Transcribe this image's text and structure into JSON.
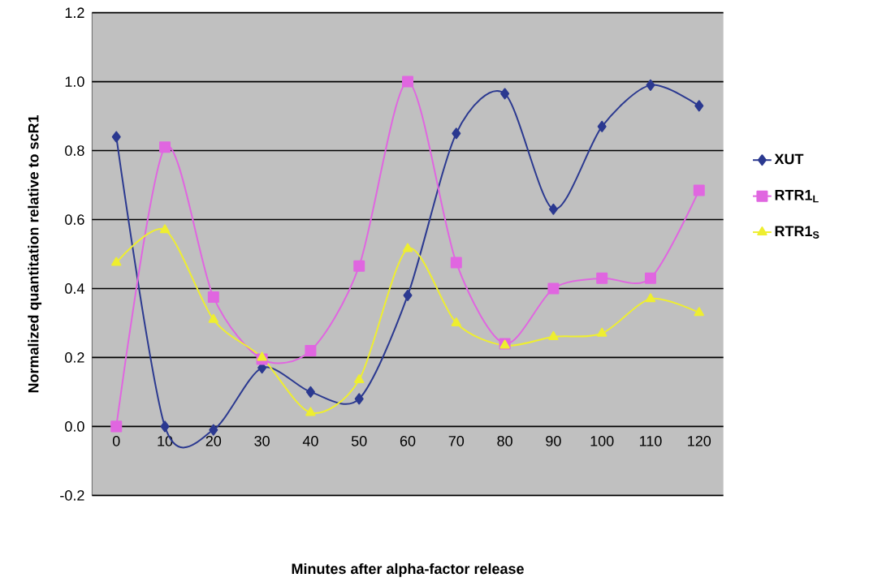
{
  "chart_data": {
    "type": "line",
    "xlabel": "Minutes after alpha-factor release",
    "ylabel": "Normalized quantitation relative to scR1",
    "categories": [
      "0",
      "10",
      "20",
      "30",
      "40",
      "50",
      "60",
      "70",
      "80",
      "90",
      "100",
      "110",
      "120"
    ],
    "series": [
      {
        "name": "XUT",
        "color": "#2b3990",
        "marker": "diamond",
        "values": [
          0.84,
          0.0,
          -0.01,
          0.17,
          0.1,
          0.08,
          0.38,
          0.85,
          0.965,
          0.63,
          0.87,
          0.99,
          0.93
        ]
      },
      {
        "name": "RTR1$_{L}$",
        "color": "#e066e0",
        "marker": "square",
        "values": [
          0.0,
          0.81,
          0.375,
          0.195,
          0.22,
          0.465,
          1.0,
          0.475,
          0.24,
          0.4,
          0.43,
          0.43,
          0.685
        ]
      },
      {
        "name": "RTR1$_{S}$",
        "color": "#eeee30",
        "marker": "triangle",
        "values": [
          0.475,
          0.57,
          0.31,
          0.2,
          0.04,
          0.135,
          0.515,
          0.3,
          0.235,
          0.26,
          0.27,
          0.37,
          0.33
        ]
      }
    ],
    "ylim": [
      -0.2,
      1.2
    ],
    "yticks": [
      -0.2,
      {
        "value": 0.0,
        "label": "0.0"
      },
      0.2,
      0.4,
      0.6,
      0.8,
      {
        "value": 1.0,
        "label": "1.0"
      },
      1.2
    ],
    "grid": "y",
    "legend": "right"
  }
}
